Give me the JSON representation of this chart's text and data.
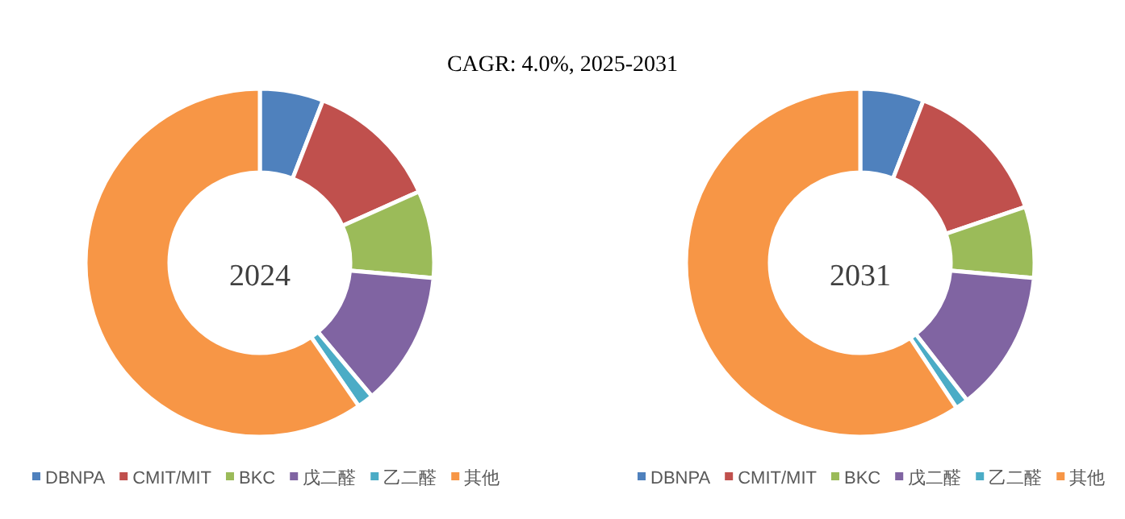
{
  "chart_data": [
    {
      "type": "donut",
      "title": "CAGR:  4.0%, 2025-2031",
      "annotations": [
        "2024"
      ],
      "categories": [
        "DBNPA",
        "CMIT/MIT",
        "BKC",
        "戊二醛",
        "乙二醛",
        "其他"
      ],
      "values": [
        5.9,
        12.4,
        8.1,
        12.5,
        1.5,
        59.6
      ],
      "colors": [
        "#4f81bd",
        "#c0504d",
        "#9bbb59",
        "#8064a2",
        "#4bacc6",
        "#f79646"
      ],
      "legend": "bottom"
    },
    {
      "type": "donut",
      "annotations": [
        "2031"
      ],
      "categories": [
        "DBNPA",
        "CMIT/MIT",
        "BKC",
        "戊二醛",
        "乙二醛",
        "其他"
      ],
      "values": [
        5.9,
        13.9,
        6.6,
        13.1,
        1.2,
        59.3
      ],
      "colors": [
        "#4f81bd",
        "#c0504d",
        "#9bbb59",
        "#8064a2",
        "#4bacc6",
        "#f79646"
      ],
      "legend": "bottom"
    }
  ]
}
